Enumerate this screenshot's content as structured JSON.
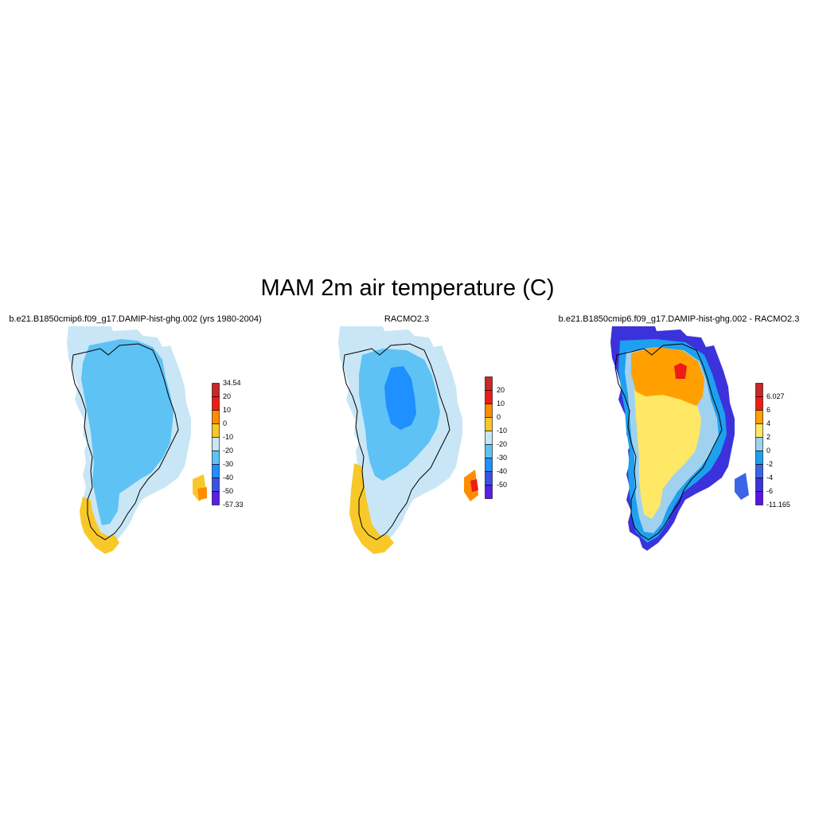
{
  "title": "MAM 2m air temperature (C)",
  "panels": [
    {
      "id": "model",
      "title": "b.e21.B1850cmip6.f09_g17.DAMIP-hist-ghg.002 (yrs 1980-2004)",
      "colorbar": {
        "labels": [
          "34.54",
          "20",
          "10",
          "0",
          "-10",
          "-20",
          "-30",
          "-40",
          "-50",
          "-57.33"
        ],
        "colors": [
          "#c8282a",
          "#ee1c17",
          "#ff8c00",
          "#f8c829",
          "#c8e6f5",
          "#5ec2f5",
          "#1e90ff",
          "#3c50e6",
          "#5a1ee6"
        ]
      }
    },
    {
      "id": "obs",
      "title": "RACMO2.3",
      "colorbar": {
        "labels": [
          "20",
          "10",
          "0",
          "-10",
          "-20",
          "-30",
          "-40",
          "-50"
        ],
        "colors": [
          "#c8282a",
          "#ee1c17",
          "#ff8c00",
          "#f8c829",
          "#c8e6f5",
          "#5ec2f5",
          "#1e90ff",
          "#3c50e6",
          "#5a1ee6"
        ]
      }
    },
    {
      "id": "diff",
      "title": "b.e21.B1850cmip6.f09_g17.DAMIP-hist-ghg.002 - RACMO2.3",
      "colorbar": {
        "labels": [
          "6.027",
          "6",
          "4",
          "2",
          "0",
          "-2",
          "-4",
          "-6",
          "-11.165"
        ],
        "colors": [
          "#c8282a",
          "#ee1c17",
          "#ffa000",
          "#ffe866",
          "#a0d2f0",
          "#1ea0f0",
          "#3c64e6",
          "#3c32dc",
          "#5a14e6"
        ]
      }
    }
  ]
}
